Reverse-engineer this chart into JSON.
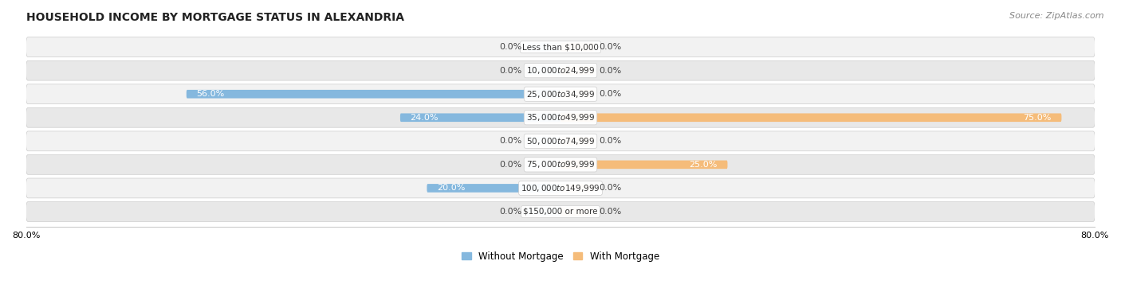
{
  "title": "HOUSEHOLD INCOME BY MORTGAGE STATUS IN ALEXANDRIA",
  "source": "Source: ZipAtlas.com",
  "categories": [
    "Less than $10,000",
    "$10,000 to $24,999",
    "$25,000 to $34,999",
    "$35,000 to $49,999",
    "$50,000 to $74,999",
    "$75,000 to $99,999",
    "$100,000 to $149,999",
    "$150,000 or more"
  ],
  "without_mortgage": [
    0.0,
    0.0,
    56.0,
    24.0,
    0.0,
    0.0,
    20.0,
    0.0
  ],
  "with_mortgage": [
    0.0,
    0.0,
    0.0,
    75.0,
    0.0,
    25.0,
    0.0,
    0.0
  ],
  "color_without": "#85b8de",
  "color_with": "#f5bc7a",
  "color_without_light": "#c5ddf0",
  "color_with_light": "#fad9b0",
  "xlim": 80.0,
  "row_bg_light": "#f2f2f2",
  "row_bg_dark": "#e8e8e8",
  "title_fontsize": 10,
  "source_fontsize": 8,
  "bar_label_fontsize": 8,
  "category_fontsize": 7.5,
  "axis_label_fontsize": 8,
  "legend_fontsize": 8.5,
  "stub_size": 5.0
}
